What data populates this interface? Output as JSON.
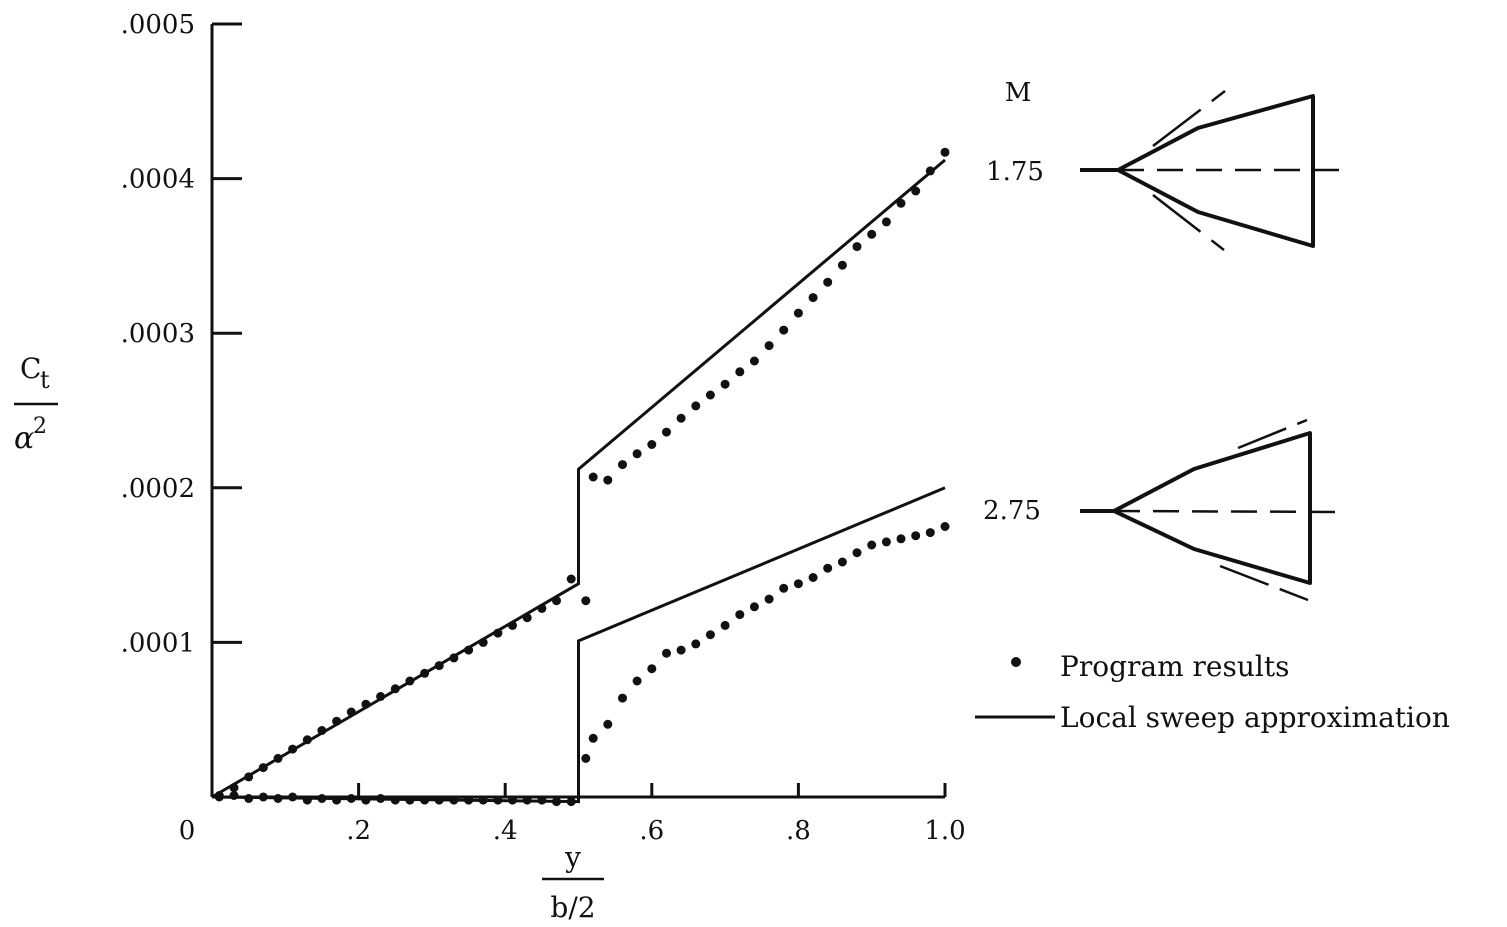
{
  "chart_data": {
    "type": "scatter",
    "x_axis": {
      "range": [
        0,
        1.0
      ],
      "tick_labels": [
        {
          "x": 0,
          "text": "0"
        },
        {
          "x": 0.2,
          "text": ".2"
        },
        {
          "x": 0.4,
          "text": ".4"
        },
        {
          "x": 0.6,
          "text": ".6"
        },
        {
          "x": 0.8,
          "text": ".8"
        },
        {
          "x": 1.0,
          "text": "1.0"
        }
      ],
      "label_numerator": "y",
      "label_denominator": "b/2"
    },
    "y_axis": {
      "range": [
        0,
        0.0005
      ],
      "tick_labels": [
        {
          "y": 0.0001,
          "text": ".0001"
        },
        {
          "y": 0.0002,
          "text": ".0002"
        },
        {
          "y": 0.0003,
          "text": ".0003"
        },
        {
          "y": 0.0004,
          "text": ".0004"
        },
        {
          "y": 0.0005,
          "text": ".0005"
        }
      ],
      "label_numerator": "C",
      "label_numerator_sub": "t",
      "label_denominator": "α",
      "label_denominator_sup": "2"
    },
    "mach_header": "M",
    "mach_labels": [
      {
        "text": "1.75",
        "y": 0.000405
      },
      {
        "text": "2.75",
        "y": 0.000185
      }
    ],
    "legend": {
      "position": "right",
      "items": [
        {
          "marker": "dot",
          "text": "Program results"
        },
        {
          "marker": "line",
          "text": "Local sweep approximation"
        }
      ]
    },
    "series": [
      {
        "mach": "1.75",
        "kind": "line",
        "x": [
          0,
          0.5,
          0.5,
          1.0
        ],
        "y": [
          0,
          0.000138,
          0.000212,
          0.000412
        ]
      },
      {
        "mach": "2.75",
        "kind": "line",
        "x": [
          0,
          0.5,
          0.5,
          1.0
        ],
        "y": [
          0,
          -3e-06,
          0.000101,
          0.0002
        ]
      },
      {
        "mach": "1.75",
        "kind": "points",
        "x": [
          0.01,
          0.03,
          0.05,
          0.07,
          0.09,
          0.11,
          0.13,
          0.15,
          0.17,
          0.19,
          0.21,
          0.23,
          0.25,
          0.27,
          0.29,
          0.31,
          0.33,
          0.35,
          0.37,
          0.39,
          0.41,
          0.43,
          0.45,
          0.47,
          0.49,
          0.51,
          0.52,
          0.54,
          0.56,
          0.58,
          0.6,
          0.62,
          0.64,
          0.66,
          0.68,
          0.7,
          0.72,
          0.74,
          0.76,
          0.78,
          0.8,
          0.82,
          0.84,
          0.86,
          0.88,
          0.9,
          0.92,
          0.94,
          0.96,
          0.98,
          1.0
        ],
        "y": [
          1e-06,
          6e-06,
          1.3e-05,
          1.9e-05,
          2.5e-05,
          3.1e-05,
          3.7e-05,
          4.3e-05,
          4.9e-05,
          5.5e-05,
          6e-05,
          6.5e-05,
          7e-05,
          7.5e-05,
          8e-05,
          8.5e-05,
          9e-05,
          9.5e-05,
          0.0001,
          0.000106,
          0.000111,
          0.000116,
          0.000122,
          0.000127,
          0.000141,
          0.000127,
          0.000207,
          0.000205,
          0.000215,
          0.000222,
          0.000228,
          0.000236,
          0.000245,
          0.000253,
          0.00026,
          0.000267,
          0.000275,
          0.000282,
          0.000292,
          0.000302,
          0.000313,
          0.000323,
          0.000333,
          0.000344,
          0.000356,
          0.000364,
          0.000372,
          0.000384,
          0.000392,
          0.000405,
          0.000417
        ]
      },
      {
        "mach": "2.75",
        "kind": "points",
        "x": [
          0.01,
          0.03,
          0.05,
          0.07,
          0.09,
          0.11,
          0.13,
          0.15,
          0.17,
          0.19,
          0.21,
          0.23,
          0.25,
          0.27,
          0.29,
          0.31,
          0.33,
          0.35,
          0.37,
          0.39,
          0.41,
          0.43,
          0.45,
          0.47,
          0.49,
          0.51,
          0.52,
          0.54,
          0.56,
          0.58,
          0.6,
          0.62,
          0.64,
          0.66,
          0.68,
          0.7,
          0.72,
          0.74,
          0.76,
          0.78,
          0.8,
          0.82,
          0.84,
          0.86,
          0.88,
          0.9,
          0.92,
          0.94,
          0.96,
          0.98,
          1.0
        ],
        "y": [
          0,
          1e-06,
          -1e-06,
          0,
          -1e-06,
          0,
          -2e-06,
          -1e-06,
          -2e-06,
          -1e-06,
          -2e-06,
          -1e-06,
          -2e-06,
          -2e-06,
          -2e-06,
          -2e-06,
          -2e-06,
          -2e-06,
          -2e-06,
          -2e-06,
          -2e-06,
          -2e-06,
          -2e-06,
          -3e-06,
          -3e-06,
          2.5e-05,
          3.8e-05,
          4.7e-05,
          6.4e-05,
          7.5e-05,
          8.3e-05,
          9.3e-05,
          9.5e-05,
          9.9e-05,
          0.000105,
          0.000111,
          0.000118,
          0.000123,
          0.000128,
          0.000135,
          0.000138,
          0.000142,
          0.000148,
          0.000152,
          0.000158,
          0.000163,
          0.000165,
          0.000167,
          0.000169,
          0.000171,
          0.000175
        ]
      }
    ]
  }
}
